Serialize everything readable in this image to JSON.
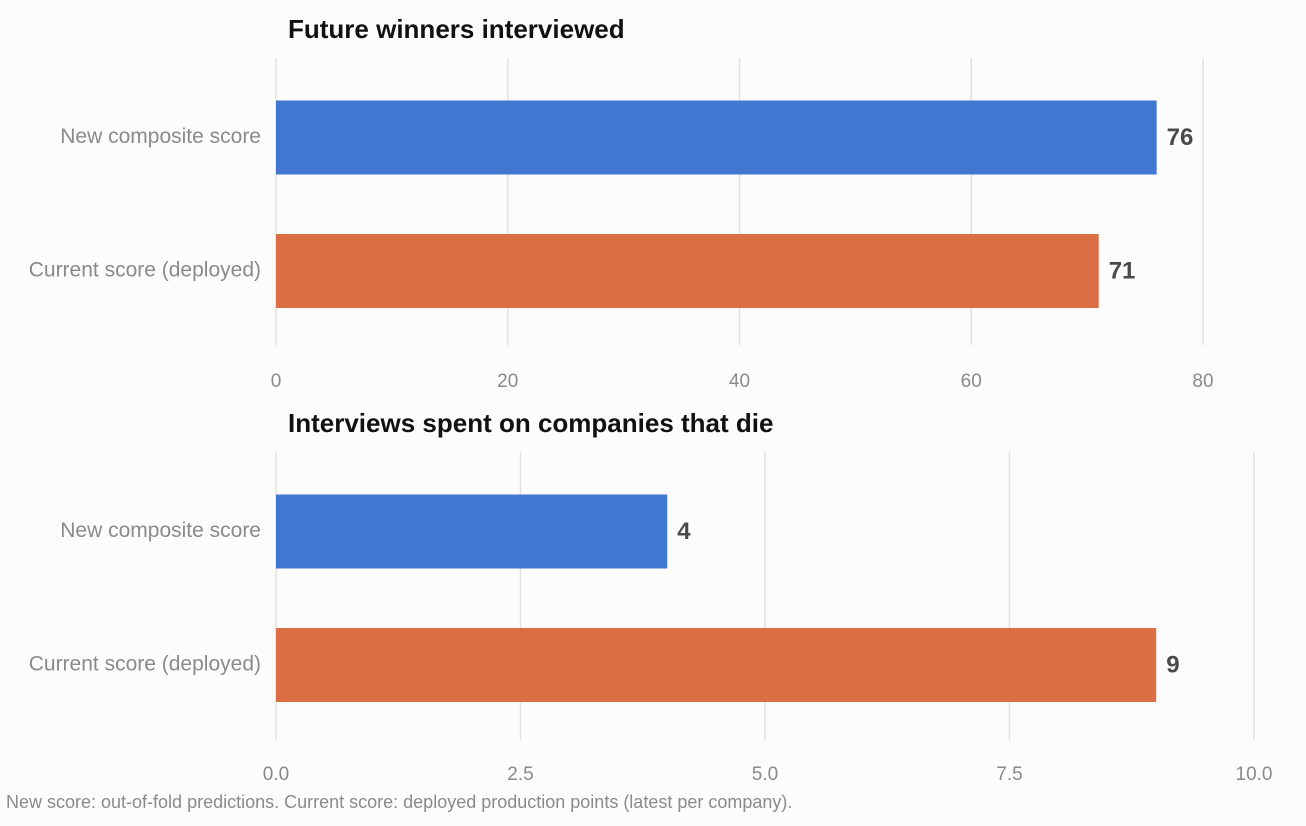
{
  "chart_data": [
    {
      "type": "bar",
      "orientation": "horizontal",
      "title": "Future winners interviewed",
      "categories": [
        "New composite score",
        "Current score (deployed)"
      ],
      "values": [
        76,
        71
      ],
      "value_labels": [
        "76",
        "71"
      ],
      "colors": [
        "#4176d1",
        "#db6e44"
      ],
      "xlim": [
        0,
        80
      ],
      "xticks": [
        0,
        20,
        40,
        60,
        80
      ],
      "xtick_labels": [
        "0",
        "20",
        "40",
        "60",
        "80"
      ],
      "grid": "vertical"
    },
    {
      "type": "bar",
      "orientation": "horizontal",
      "title": "Interviews spent on companies that die",
      "categories": [
        "New composite score",
        "Current score (deployed)"
      ],
      "values": [
        4,
        9
      ],
      "value_labels": [
        "4",
        "9"
      ],
      "colors": [
        "#4176d1",
        "#db6e44"
      ],
      "xlim": [
        0,
        10
      ],
      "xticks": [
        0,
        2.5,
        5,
        7.5,
        10
      ],
      "xtick_labels": [
        "0.0",
        "2.5",
        "5.0",
        "7.5",
        "10.0"
      ],
      "grid": "vertical"
    }
  ],
  "caption": "New score: out-of-fold predictions. Current score: deployed production points (latest per company)."
}
